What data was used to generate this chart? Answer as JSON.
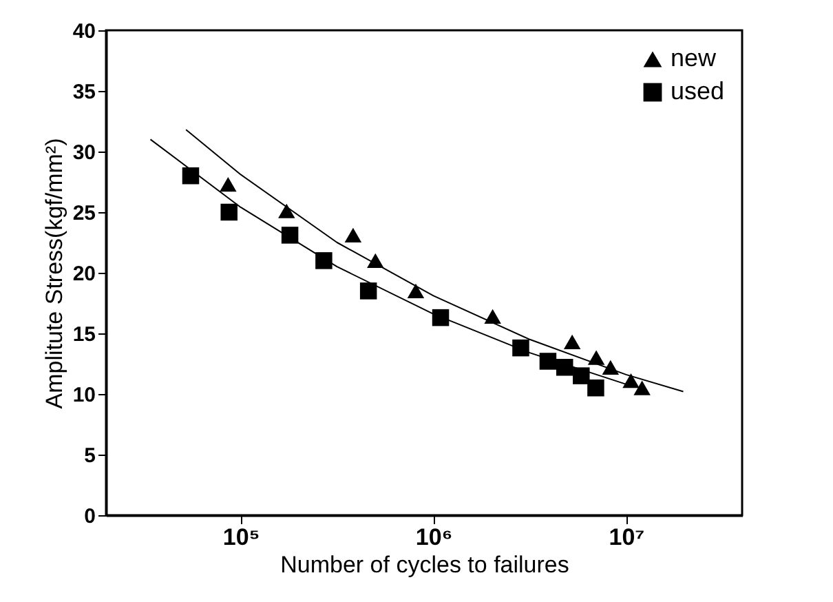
{
  "chart_data": {
    "type": "scatter",
    "xlabel": "Number of cycles to failures",
    "ylabel": "Amplitute  Stress(kgf/mm²)",
    "log": "x",
    "xlim": [
      20000,
      40000000
    ],
    "xticks": [
      {
        "value": 100000,
        "label": "10⁵"
      },
      {
        "value": 1000000,
        "label": "10⁶"
      },
      {
        "value": 10000000,
        "label": "10⁷"
      }
    ],
    "ylim": [
      0,
      40
    ],
    "yticks": [
      0,
      5,
      10,
      15,
      20,
      25,
      30,
      35,
      40
    ],
    "grid": false,
    "legend": "top right",
    "series": [
      {
        "name": "new",
        "marker": "triangle",
        "color": "#000000",
        "x": [
          86000,
          173000,
          383000,
          500000,
          810000,
          2030000,
          5250000,
          7000000,
          8300000,
          10600000,
          12100000
        ],
        "values": [
          27.3,
          25.1,
          23.1,
          21.0,
          18.5,
          16.4,
          14.3,
          13.0,
          12.2,
          11.1,
          10.5
        ]
      },
      {
        "name": "used",
        "marker": "square",
        "color": "#000000",
        "x": [
          55000,
          87000,
          180000,
          270000,
          460000,
          1090000,
          2840000,
          3930000,
          4800000,
          5850000,
          6960000
        ],
        "values": [
          28.0,
          25.0,
          23.1,
          21.0,
          18.5,
          16.3,
          13.8,
          12.7,
          12.2,
          11.5,
          10.5
        ]
      },
      {
        "type": "line",
        "line_style": "solid",
        "color": "#000000",
        "x": [
          52000,
          100000,
          316000,
          1000000,
          3160000,
          10000000,
          19800000
        ],
        "values": [
          31.8,
          28.1,
          22.5,
          18.1,
          14.5,
          11.6,
          10.2
        ]
      },
      {
        "type": "line",
        "line_style": "solid",
        "color": "#000000",
        "x": [
          34000,
          100000,
          316000,
          1000000,
          3160000,
          10000000,
          11000000
        ],
        "values": [
          31.0,
          25.4,
          20.5,
          16.6,
          13.4,
          10.8,
          10.6
        ]
      }
    ]
  }
}
